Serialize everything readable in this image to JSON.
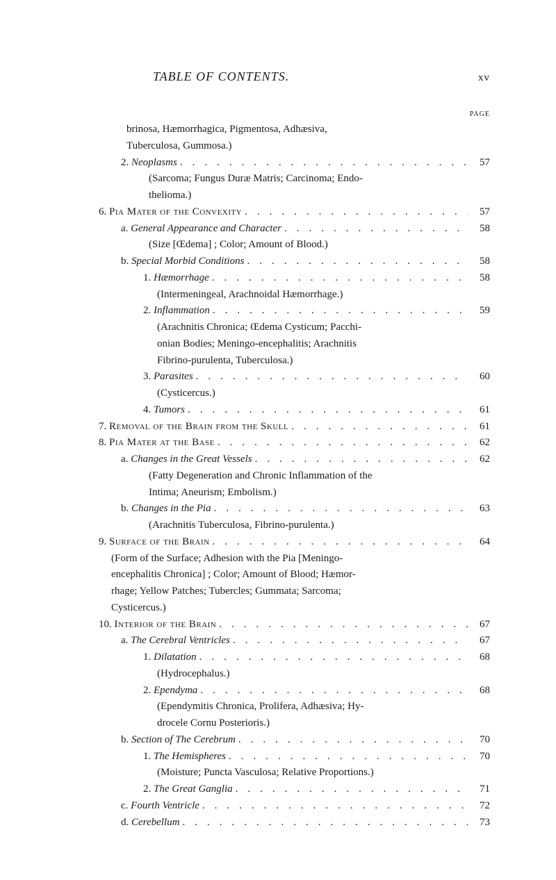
{
  "header": {
    "title": "TABLE OF CONTENTS.",
    "page_roman": "xv",
    "page_label": "PAGE"
  },
  "entries": [
    {
      "indent": "ind-cont",
      "text": "brinosa, Hæmorrhagica, Pigmentosa, Adhæsiva,",
      "cont": true
    },
    {
      "indent": "ind-cont",
      "text": "Tuberculosa, Gummosa.)",
      "cont": true
    },
    {
      "indent": "ind-3",
      "text": "2. Neoplasms",
      "page": "57",
      "italic_after": "2. "
    },
    {
      "indent": "ind-cont-2",
      "text": "(Sarcoma; Fungus Duræ Matris; Carcinoma; Endo-",
      "cont": true
    },
    {
      "indent": "ind-cont-2",
      "text": "thelioma.)",
      "cont": true
    },
    {
      "indent": "ind-2",
      "text_pre": "6. ",
      "text_sc": "Pia Mater of the Convexity",
      "page": "57"
    },
    {
      "indent": "ind-3",
      "text_pre": "a. ",
      "text_it": "General Appearance and Character",
      "page": "58"
    },
    {
      "indent": "ind-cont-2",
      "text": "(Size [Œdema] ; Color; Amount of Blood.)",
      "cont": true
    },
    {
      "indent": "ind-3",
      "text_pre": "b. ",
      "text_it": "Special Morbid Conditions",
      "page": "58"
    },
    {
      "indent": "ind-4",
      "text_pre": "1. ",
      "text_it": "Hæmorrhage",
      "page": "58"
    },
    {
      "indent": "ind-5",
      "text": "(Intermeningeal, Arachnoidal Hæmorrhage.)",
      "cont": true
    },
    {
      "indent": "ind-4",
      "text_pre": "2. ",
      "text_it": "Inflammation",
      "page": "59"
    },
    {
      "indent": "ind-5",
      "text": "(Arachnitis Chronica; Œdema Cysticum; Pacchi-",
      "cont": true
    },
    {
      "indent": "ind-5",
      "text": "onian Bodies; Meningo-encephalitis; Arachnitis",
      "cont": true
    },
    {
      "indent": "ind-5",
      "text": "Fibrino-purulenta, Tuberculosa.)",
      "cont": true
    },
    {
      "indent": "ind-4",
      "text_pre": "3. ",
      "text_it": "Parasites",
      "page": "60"
    },
    {
      "indent": "ind-5",
      "text": "(Cysticercus.)",
      "cont": true
    },
    {
      "indent": "ind-4",
      "text_pre": "4. ",
      "text_it": "Tumors",
      "page": "61"
    },
    {
      "indent": "ind-2",
      "text_pre": "7. ",
      "text_sc": "Removal of the Brain from the Skull",
      "page": "61"
    },
    {
      "indent": "ind-2",
      "text_pre": "8. ",
      "text_sc": "Pia Mater at the Base",
      "page": "62"
    },
    {
      "indent": "ind-3",
      "text_pre": "a. ",
      "text_it": "Changes in the Great Vessels",
      "page": "62"
    },
    {
      "indent": "ind-cont-2",
      "text": "(Fatty Degeneration and Chronic Inflammation of the",
      "cont": true
    },
    {
      "indent": "ind-cont-2",
      "text": "Intima; Aneurism; Embolism.)",
      "cont": true
    },
    {
      "indent": "ind-3",
      "text_pre": "b. ",
      "text_it": "Changes in the Pia",
      "page": "63"
    },
    {
      "indent": "ind-cont-2",
      "text": "(Arachnitis Tuberculosa, Fibrino-purulenta.)",
      "cont": true
    },
    {
      "indent": "ind-2",
      "text_pre": "9. ",
      "text_sc": "Surface of the Brain",
      "page": "64"
    },
    {
      "indent": "ind-cont-3",
      "text": "(Form of the Surface; Adhesion with the Pia [Meningo-",
      "cont": true
    },
    {
      "indent": "ind-cont-3",
      "text": "encephalitis Chronica] ; Color; Amount of Blood; Hæmor-",
      "cont": true
    },
    {
      "indent": "ind-cont-3",
      "text": "rhage; Yellow Patches; Tubercles; Gummata; Sarcoma;",
      "cont": true
    },
    {
      "indent": "ind-cont-3",
      "text": "Cysticercus.)",
      "cont": true
    },
    {
      "indent": "ind-2",
      "text_pre": "10. ",
      "text_sc": "Interior of the Brain",
      "page": "67"
    },
    {
      "indent": "ind-3",
      "text_pre": "a. ",
      "text_it": "The Cerebral Ventricles",
      "page": "67"
    },
    {
      "indent": "ind-4",
      "text_pre": "1. ",
      "text_it": "Dilatation",
      "page": "68"
    },
    {
      "indent": "ind-5",
      "text": "(Hydrocephalus.)",
      "cont": true
    },
    {
      "indent": "ind-4",
      "text_pre": "2. ",
      "text_it": "Ependyma",
      "page": "68"
    },
    {
      "indent": "ind-5",
      "text": "(Ependymitis Chronica, Prolifera, Adhæsiva; Hy-",
      "cont": true
    },
    {
      "indent": "ind-5",
      "text": "drocele Cornu Posterioris.)",
      "cont": true
    },
    {
      "indent": "ind-3",
      "text_pre": "b. ",
      "text_it": "Section of The Cerebrum",
      "page": "70"
    },
    {
      "indent": "ind-4",
      "text_pre": "1. ",
      "text_it": "The Hemispheres",
      "page": "70"
    },
    {
      "indent": "ind-5",
      "text": "(Moisture; Puncta Vasculosa; Relative Proportions.)",
      "cont": true
    },
    {
      "indent": "ind-4",
      "text_pre": "2. ",
      "text_it": "The Great Ganglia",
      "page": "71"
    },
    {
      "indent": "ind-3",
      "text_pre": "c. ",
      "text_it": "Fourth Ventricle",
      "page": "72"
    },
    {
      "indent": "ind-3",
      "text_pre": "d. ",
      "text_it": "Cerebellum",
      "page": "73"
    }
  ]
}
